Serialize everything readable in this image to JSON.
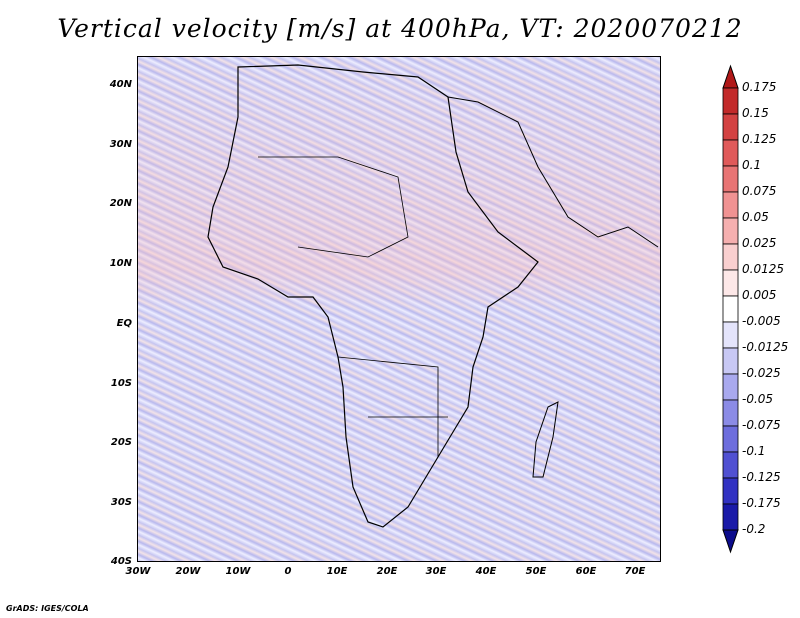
{
  "title": "Vertical velocity [m/s] at 400hPa, VT: 2020070212",
  "credit": "GrADS: IGES/COLA",
  "map": {
    "y_axis_labels": [
      "40N",
      "30N",
      "20N",
      "10N",
      "EQ",
      "10S",
      "20S",
      "30S",
      "40S"
    ],
    "x_axis_labels": [
      "30W",
      "20W",
      "10W",
      "0",
      "10E",
      "20E",
      "30E",
      "40E",
      "50E",
      "60E",
      "70E"
    ]
  },
  "colorbar": {
    "labels": [
      "0.175",
      "0.15",
      "0.125",
      "0.1",
      "0.075",
      "0.05",
      "0.025",
      "0.0125",
      "0.005",
      "-0.005",
      "-0.0125",
      "-0.025",
      "-0.05",
      "-0.075",
      "-0.1",
      "-0.125",
      "-0.175",
      "-0.2"
    ],
    "colors": [
      "#b01818",
      "#c22a2a",
      "#d34242",
      "#e05a5a",
      "#e87474",
      "#f09292",
      "#f5afaf",
      "#f9cfcf",
      "#fde8e8",
      "#ffffff",
      "#e4e4fb",
      "#c8c8f4",
      "#a9a9ee",
      "#8b8be6",
      "#6d6ddd",
      "#5050d2",
      "#3232c2",
      "#1a1aa8",
      "#0c0c8c"
    ]
  }
}
